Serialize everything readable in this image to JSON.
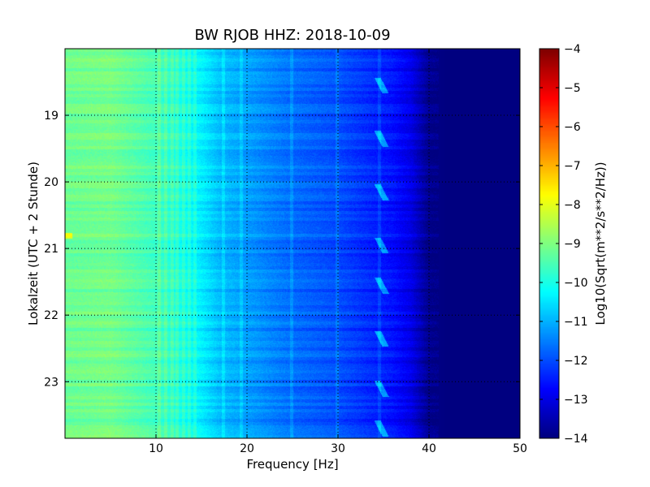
{
  "chart_data": {
    "type": "heatmap",
    "title": "BW RJOB HHZ: 2018-10-09",
    "xlabel": "Frequency [Hz]",
    "ylabel": "Lokalzeit (UTC + 2 Stunde)",
    "colorbar_label": "Log10(Sqrt(m**2/s**2/Hz))",
    "xlim": [
      0,
      50
    ],
    "ylim": [
      18.0,
      23.85
    ],
    "y_inverted": true,
    "x_ticks": [
      10,
      20,
      30,
      40,
      50
    ],
    "y_ticks": [
      19,
      20,
      21,
      22,
      23
    ],
    "colorbar_range": [
      -14,
      -4
    ],
    "colorbar_ticks": [
      -4,
      -5,
      -6,
      -7,
      -8,
      -9,
      -10,
      -11,
      -12,
      -13,
      -14
    ],
    "grid": true,
    "colormap": "jet",
    "profile_frequency_hz": [
      0,
      5,
      10,
      15,
      17,
      20,
      25,
      30,
      33,
      36,
      38,
      40,
      42,
      50
    ],
    "profile_level": [
      -9.2,
      -9.1,
      -9.6,
      -10.4,
      -10.9,
      -11.2,
      -11.7,
      -12.0,
      -12.3,
      -12.6,
      -13.0,
      -13.9,
      -14.0,
      -14.0
    ],
    "spectral_lines_hz": [
      10.3,
      11.0,
      11.7,
      12.3,
      13.0,
      13.6,
      14.2,
      17.4,
      19.3,
      24.9,
      29.9,
      34.5
    ],
    "transient_events_hour": [
      18.55,
      19.35,
      20.15,
      20.95,
      21.55,
      22.35,
      23.1,
      23.7
    ]
  }
}
